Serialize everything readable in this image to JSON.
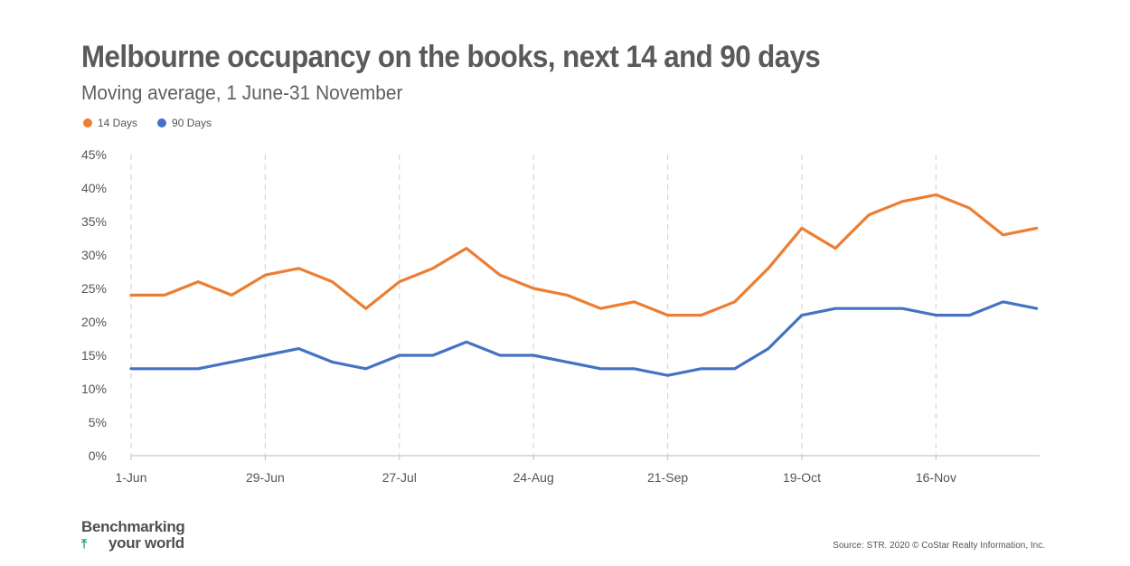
{
  "header": {
    "title": "Melbourne occupancy on the books, next 14 and 90 days",
    "subtitle": "Moving average, 1 June-31 November"
  },
  "legend": {
    "items": [
      {
        "label": "14 Days",
        "color": "#ED7D31"
      },
      {
        "label": "90 Days",
        "color": "#4472C4"
      }
    ]
  },
  "footer": {
    "brand_line1": "Benchmarking",
    "brand_line2": "your world",
    "brand_icon": "arrow-up-icon",
    "source": "Source: STR. 2020 © CoStar Realty Information, Inc."
  },
  "chart_data": {
    "type": "line",
    "x": [
      0,
      1,
      2,
      3,
      4,
      5,
      6,
      7,
      8,
      9,
      10,
      11,
      12,
      13,
      14,
      15,
      16,
      17,
      18,
      19,
      20,
      21,
      22,
      23,
      24,
      25,
      26,
      27
    ],
    "x_tick_labels": [
      {
        "x": 0,
        "label": "1-Jun"
      },
      {
        "x": 4,
        "label": "29-Jun"
      },
      {
        "x": 8,
        "label": "27-Jul"
      },
      {
        "x": 12,
        "label": "24-Aug"
      },
      {
        "x": 16,
        "label": "21-Sep"
      },
      {
        "x": 20,
        "label": "19-Oct"
      },
      {
        "x": 24,
        "label": "16-Nov"
      }
    ],
    "series": [
      {
        "name": "14 Days",
        "color": "#ED7D31",
        "values": [
          24,
          24,
          26,
          24,
          27,
          28,
          26,
          22,
          26,
          28,
          31,
          27,
          25,
          24,
          22,
          23,
          21,
          21,
          23,
          28,
          34,
          31,
          36,
          38,
          39,
          37,
          33,
          34
        ]
      },
      {
        "name": "90 Days",
        "color": "#4472C4",
        "values": [
          13,
          13,
          13,
          14,
          15,
          16,
          14,
          13,
          15,
          15,
          17,
          15,
          15,
          14,
          13,
          13,
          12,
          13,
          13,
          16,
          21,
          22,
          22,
          22,
          21,
          21,
          23,
          22
        ]
      }
    ],
    "ylim": [
      0,
      45
    ],
    "y_ticks": [
      0,
      5,
      10,
      15,
      20,
      25,
      30,
      35,
      40,
      45
    ],
    "y_tick_format": "%",
    "grid": "vertical-dashed",
    "legend_position": "top-left"
  }
}
